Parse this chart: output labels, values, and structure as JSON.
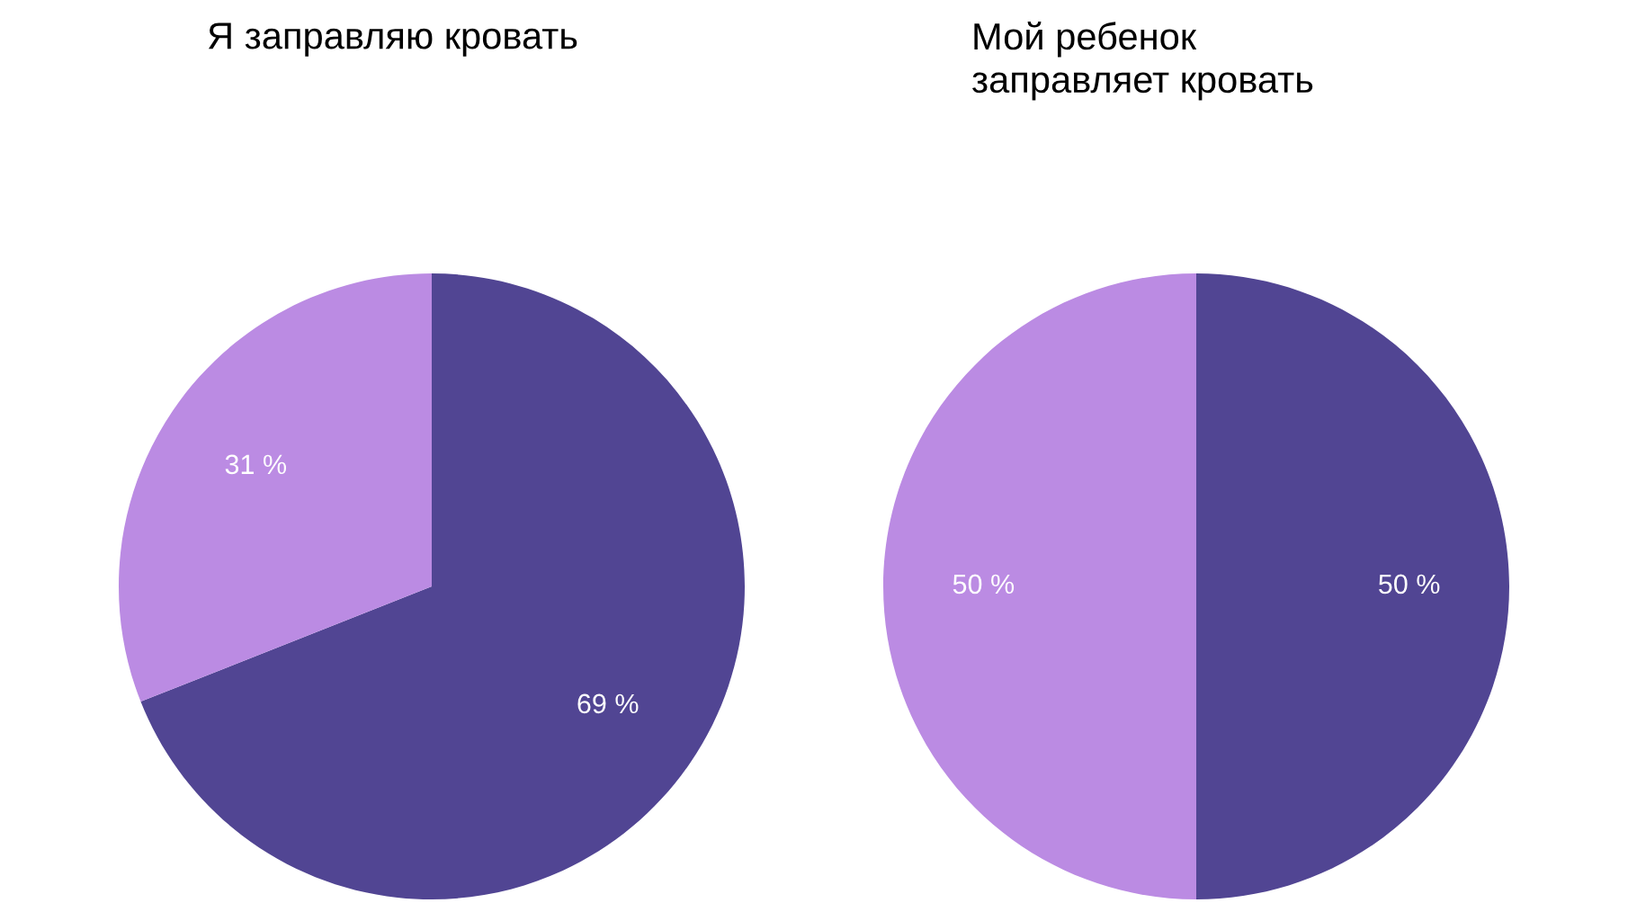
{
  "chart_data": [
    {
      "type": "pie",
      "title": "Я заправляю кровать",
      "categories": [
        null,
        null
      ],
      "values": [
        69,
        31
      ],
      "colors": [
        "#514593",
        "#bb8be3"
      ],
      "value_labels": [
        "69 %",
        "31 %"
      ]
    },
    {
      "type": "pie",
      "title": "Мой ребенок\nзаправляет кровать",
      "categories": [
        null,
        null
      ],
      "values": [
        50,
        50
      ],
      "colors": [
        "#514593",
        "#bb8be3"
      ],
      "value_labels": [
        "50 %",
        "50 %"
      ]
    }
  ]
}
